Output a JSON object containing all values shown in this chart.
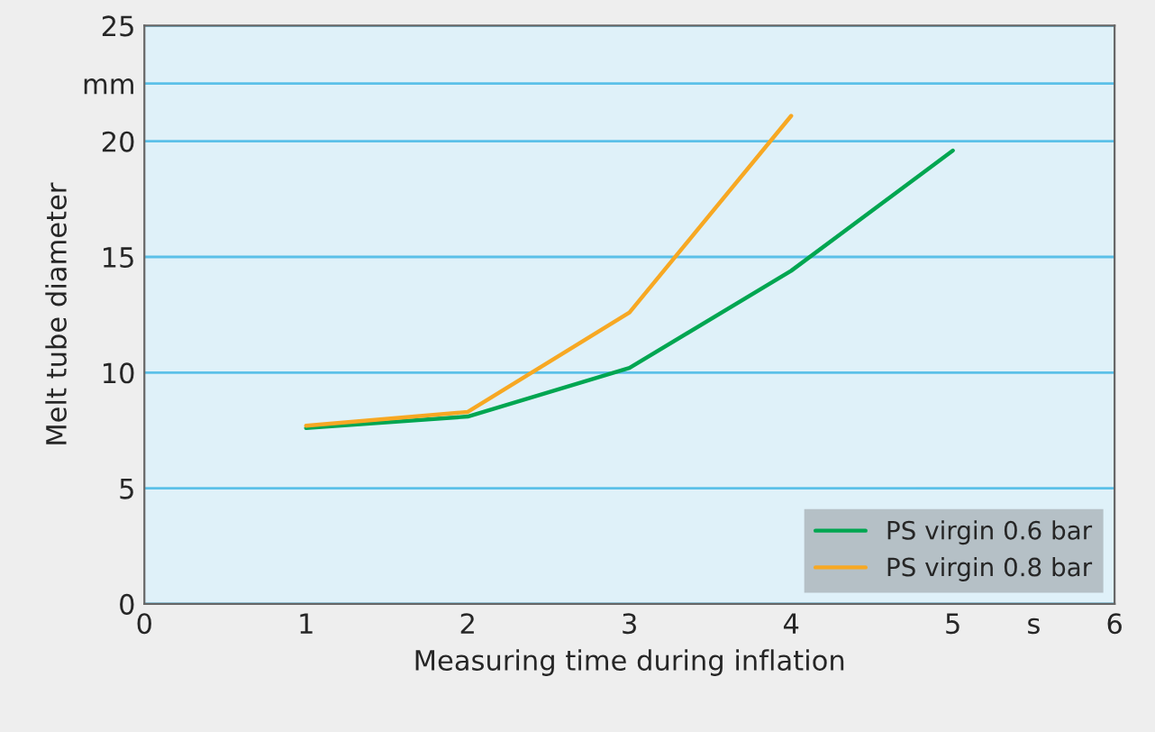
{
  "chart_data": {
    "type": "line",
    "xlabel": "Measuring time during inflation",
    "ylabel": "Melt tube diameter",
    "x": [
      1,
      2,
      3,
      4,
      5
    ],
    "series": [
      {
        "name": "PS virgin 0.6 bar",
        "color": "#00a651",
        "values": [
          7.6,
          8.1,
          10.2,
          14.4,
          19.6
        ]
      },
      {
        "name": "PS virgin 0.8 bar",
        "color": "#f7a823",
        "values": [
          7.7,
          8.3,
          12.6,
          21.1,
          null
        ]
      }
    ],
    "xlim": [
      0,
      6
    ],
    "xticks": [
      0,
      1,
      2,
      3,
      4,
      5,
      {
        "value": 5.5,
        "label": "s"
      },
      6
    ],
    "ylim": [
      0,
      25
    ],
    "yticks": [
      0,
      5,
      10,
      15,
      20,
      {
        "value": 22.5,
        "label": "mm"
      },
      25
    ],
    "grid": "y",
    "legend": "bottom right",
    "marker": "none",
    "line_style": "solid"
  }
}
